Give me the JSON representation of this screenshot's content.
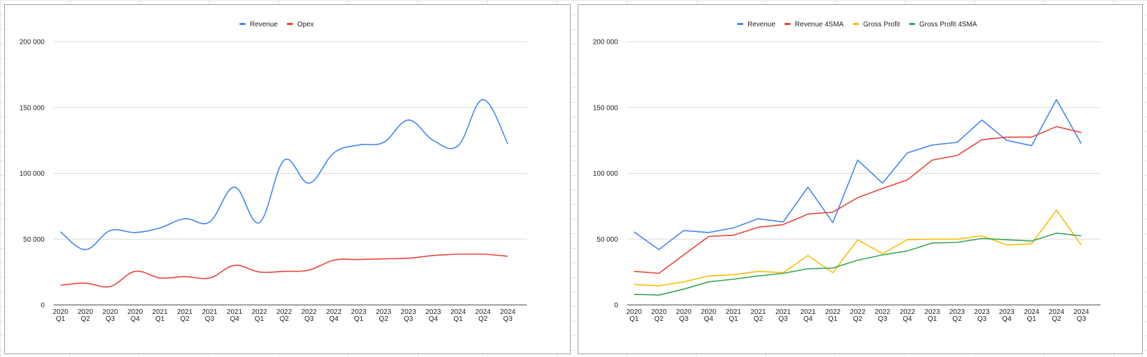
{
  "chart_data": [
    {
      "type": "line",
      "smooth": true,
      "categories": [
        "2020 Q1",
        "2020 Q2",
        "2020 Q3",
        "2020 Q4",
        "2021 Q1",
        "2021 Q2",
        "2021 Q3",
        "2021 Q4",
        "2022 Q1",
        "2022 Q2",
        "2022 Q3",
        "2022 Q4",
        "2023 Q1",
        "2023 Q2",
        "2023 Q3",
        "2023 Q4",
        "2024 Q1",
        "2024 Q2",
        "2024 Q3"
      ],
      "ylim": [
        0,
        200000
      ],
      "yticks": [
        "0",
        "50 000",
        "100 000",
        "150 000",
        "200 000"
      ],
      "grid": true,
      "legend_position": "top",
      "series": [
        {
          "name": "Revenue",
          "color": "#4285f4",
          "values": [
            55500,
            42000,
            56500,
            55000,
            58500,
            65500,
            63000,
            89500,
            62500,
            110000,
            92500,
            115500,
            121500,
            123500,
            140500,
            125000,
            121000,
            156000,
            122500
          ]
        },
        {
          "name": "Opex",
          "color": "#ea4335",
          "values": [
            15000,
            16500,
            14000,
            25500,
            20500,
            21500,
            20500,
            30000,
            25000,
            25500,
            26500,
            34000,
            34500,
            35000,
            35500,
            37500,
            38500,
            38500,
            37000
          ]
        }
      ]
    },
    {
      "type": "line",
      "smooth": false,
      "categories": [
        "2020 Q1",
        "2020 Q2",
        "2020 Q3",
        "2020 Q4",
        "2021 Q1",
        "2021 Q2",
        "2021 Q3",
        "2021 Q4",
        "2022 Q1",
        "2022 Q2",
        "2022 Q3",
        "2022 Q4",
        "2023 Q1",
        "2023 Q2",
        "2023 Q3",
        "2023 Q4",
        "2024 Q1",
        "2024 Q2",
        "2024 Q3"
      ],
      "ylim": [
        0,
        200000
      ],
      "yticks": [
        "0",
        "50 000",
        "100 000",
        "150 000",
        "200 000"
      ],
      "grid": true,
      "legend_position": "top",
      "series": [
        {
          "name": "Revenue",
          "color": "#4285f4",
          "values": [
            55500,
            42000,
            56500,
            55000,
            58500,
            65500,
            63000,
            89500,
            62500,
            110000,
            92500,
            115500,
            121500,
            123500,
            140500,
            125000,
            121000,
            156000,
            122500
          ]
        },
        {
          "name": "Revenue 4SMA",
          "color": "#ea4335",
          "values": [
            25500,
            24000,
            38000,
            52000,
            53000,
            59000,
            61000,
            69000,
            70500,
            81500,
            88500,
            95000,
            110000,
            113500,
            125500,
            127500,
            127500,
            135500,
            131000
          ]
        },
        {
          "name": "Gross Profit",
          "color": "#fbbc04",
          "values": [
            15500,
            14500,
            17500,
            22000,
            23000,
            25500,
            24500,
            37500,
            24500,
            49500,
            39000,
            49500,
            50000,
            50000,
            52500,
            45500,
            46500,
            72000,
            45500
          ]
        },
        {
          "name": "Gross Profit 4SMA",
          "color": "#34a853",
          "values": [
            8000,
            7500,
            12000,
            17500,
            19500,
            22000,
            24000,
            27500,
            28000,
            34000,
            38000,
            41000,
            47000,
            47500,
            50500,
            49500,
            48500,
            54500,
            52500
          ]
        }
      ]
    }
  ]
}
